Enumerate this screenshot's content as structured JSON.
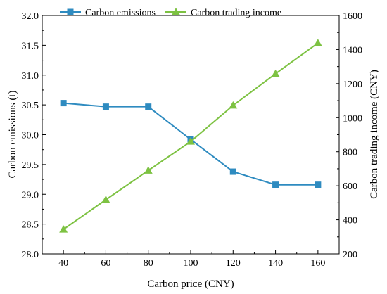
{
  "chart_data": {
    "type": "line",
    "title": "",
    "xlabel": "Carbon price (CNY)",
    "ylabel_left": "Carbon emissions (t)",
    "ylabel_right": "Carbon trading income (CNY)",
    "x": [
      40,
      60,
      80,
      100,
      120,
      140,
      160
    ],
    "xlim": [
      30,
      170
    ],
    "x_ticks": [
      "40",
      "60",
      "80",
      "100",
      "120",
      "140",
      "160"
    ],
    "ylim_left": [
      28.0,
      32.0
    ],
    "y_ticks_left": [
      "28.0",
      "28.5",
      "29.0",
      "29.5",
      "30.0",
      "30.5",
      "31.0",
      "31.5",
      "32.0"
    ],
    "ylim_right": [
      200,
      1600
    ],
    "y_ticks_right": [
      "200",
      "400",
      "600",
      "800",
      "1000",
      "1200",
      "1400",
      "1600"
    ],
    "grid": false,
    "legend_position": "top",
    "series": [
      {
        "name": "Carbon emissions",
        "axis": "left",
        "marker": "square",
        "color": "#2E8BC0",
        "values": [
          30.53,
          30.47,
          30.47,
          29.92,
          29.38,
          29.16,
          29.16
        ]
      },
      {
        "name": "Carbon trading income",
        "axis": "right",
        "marker": "triangle",
        "color": "#7DC242",
        "values": [
          344,
          518,
          690,
          860,
          1072,
          1258,
          1438
        ]
      }
    ]
  }
}
